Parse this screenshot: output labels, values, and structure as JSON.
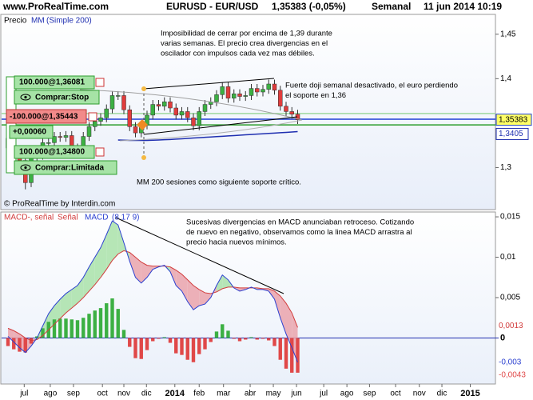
{
  "header": {
    "site": "www.ProRealTime.com",
    "instrument": "EURUSD - EUR/USD",
    "quote": "1,35383 (-0,05%)",
    "period": "Semanal",
    "datetime": "11 jun 2014 10:19"
  },
  "credit": "© ProRealTime by Interdin.com",
  "orders": [
    {
      "label": "100.000@1,36081",
      "kind": "Comprar:Stop",
      "price": 1.36081,
      "color": "#9fd89f"
    },
    {
      "label": "-100.000@1,35443",
      "delta": "+0,00060",
      "price": 1.35443,
      "color": "#1f3fd6"
    },
    {
      "label": "100.000@1,34800",
      "kind": "Comprar:Limitada",
      "price": 1.348,
      "color": "#2e9e2e"
    }
  ],
  "chart_data": [
    {
      "type": "candlestick",
      "label": "Precio",
      "xlim": [
        0,
        84
      ],
      "ylim": [
        1.2536,
        1.4714
      ],
      "yticks": [
        {
          "value": 1.45,
          "label": "1,45"
        },
        {
          "value": 1.4,
          "label": "1,4"
        },
        {
          "value": 1.3,
          "label": "1,3"
        }
      ],
      "up_color": "#3cb043",
      "down_color": "#e03c3c",
      "open": [
        1.322,
        1.333,
        1.312,
        1.308,
        1.283,
        1.313,
        1.314,
        1.328,
        1.328,
        1.335,
        1.334,
        1.336,
        1.322,
        1.321,
        1.335,
        1.346,
        1.352,
        1.356,
        1.366,
        1.381,
        1.381,
        1.365,
        1.346,
        1.339,
        1.348,
        1.359,
        1.371,
        1.369,
        1.374,
        1.367,
        1.359,
        1.363,
        1.356,
        1.347,
        1.363,
        1.371,
        1.374,
        1.382,
        1.391,
        1.378,
        1.383,
        1.38,
        1.381,
        1.389,
        1.385,
        1.388,
        1.394,
        1.387,
        1.369,
        1.363,
        1.36
      ],
      "high": [
        1.338,
        1.338,
        1.317,
        1.313,
        1.318,
        1.319,
        1.333,
        1.333,
        1.34,
        1.34,
        1.341,
        1.341,
        1.327,
        1.34,
        1.351,
        1.357,
        1.361,
        1.371,
        1.386,
        1.386,
        1.386,
        1.37,
        1.351,
        1.353,
        1.364,
        1.376,
        1.376,
        1.379,
        1.379,
        1.372,
        1.368,
        1.368,
        1.361,
        1.368,
        1.376,
        1.379,
        1.387,
        1.396,
        1.396,
        1.388,
        1.388,
        1.386,
        1.394,
        1.394,
        1.393,
        1.399,
        1.399,
        1.392,
        1.374,
        1.368,
        1.365
      ],
      "low": [
        1.317,
        1.307,
        1.303,
        1.2755,
        1.278,
        1.308,
        1.309,
        1.323,
        1.323,
        1.329,
        1.329,
        1.317,
        1.316,
        1.316,
        1.33,
        1.341,
        1.347,
        1.351,
        1.361,
        1.376,
        1.36,
        1.341,
        1.334,
        1.334,
        1.343,
        1.354,
        1.364,
        1.364,
        1.362,
        1.354,
        1.354,
        1.351,
        1.342,
        1.342,
        1.358,
        1.366,
        1.369,
        1.377,
        1.373,
        1.373,
        1.375,
        1.375,
        1.376,
        1.38,
        1.38,
        1.383,
        1.382,
        1.364,
        1.358,
        1.355,
        1.349
      ],
      "close": [
        1.333,
        1.312,
        1.308,
        1.283,
        1.313,
        1.314,
        1.328,
        1.328,
        1.335,
        1.334,
        1.336,
        1.322,
        1.321,
        1.335,
        1.346,
        1.352,
        1.356,
        1.366,
        1.381,
        1.381,
        1.365,
        1.346,
        1.339,
        1.348,
        1.359,
        1.371,
        1.369,
        1.374,
        1.367,
        1.359,
        1.363,
        1.356,
        1.347,
        1.363,
        1.371,
        1.374,
        1.382,
        1.391,
        1.378,
        1.383,
        1.38,
        1.381,
        1.389,
        1.385,
        1.388,
        1.394,
        1.387,
        1.369,
        1.363,
        1.36,
        1.35383
      ],
      "close_last_label": "1,35383",
      "series": [
        {
          "name": "MM",
          "params": "(Simple 200)",
          "color": "#1f2fb0",
          "last_label": "1,3405",
          "values": [
            null,
            null,
            null,
            null,
            null,
            null,
            null,
            null,
            null,
            null,
            null,
            null,
            null,
            null,
            null,
            null,
            null,
            null,
            null,
            1.331,
            1.3308,
            1.3306,
            1.3305,
            1.3305,
            1.3306,
            1.3308,
            1.331,
            1.3313,
            1.3316,
            1.332,
            1.3324,
            1.3328,
            1.3332,
            1.3336,
            1.334,
            1.3344,
            1.3348,
            1.3352,
            1.3356,
            1.336,
            1.3364,
            1.3368,
            1.3372,
            1.3376,
            1.338,
            1.3384,
            1.3388,
            1.3392,
            1.3396,
            1.34,
            1.3405
          ]
        }
      ],
      "annotations": [
        [
          "Imposibilidad de cerrar por encima de 1,39 durante",
          "varias semanas. El precio crea divergencias en el",
          "oscilador con impulsos cada vez mas débiles."
        ],
        [
          "Fuerte doji semanal desactivado, el euro perdiendo",
          "el soporte en 1,36"
        ],
        [
          "MM 200 sesiones como siguiente soporte crítico."
        ]
      ]
    },
    {
      "type": "macd",
      "params": "(8 17 9)",
      "xlim": [
        0,
        84
      ],
      "xticks": [
        {
          "value": 2.8,
          "label": "jul"
        },
        {
          "value": 7.3,
          "label": "ago"
        },
        {
          "value": 11.3,
          "label": "sep"
        },
        {
          "value": 16.3,
          "label": "oct"
        },
        {
          "value": 20,
          "label": "nov"
        },
        {
          "value": 23.9,
          "label": "dic"
        },
        {
          "value": 28.8,
          "label": "2014"
        },
        {
          "value": 33,
          "label": "feb"
        },
        {
          "value": 37.2,
          "label": "mar"
        },
        {
          "value": 41.8,
          "label": "abr"
        },
        {
          "value": 45.8,
          "label": "may"
        },
        {
          "value": 49.8,
          "label": "jun"
        },
        {
          "value": 54.5,
          "label": "jul"
        },
        {
          "value": 58.5,
          "label": "ago"
        },
        {
          "value": 62.4,
          "label": "sep"
        },
        {
          "value": 66.9,
          "label": "oct"
        },
        {
          "value": 71,
          "label": "nov"
        },
        {
          "value": 74.9,
          "label": "dic"
        },
        {
          "value": 79.8,
          "label": "2015"
        }
      ],
      "ylim": [
        -0.0056,
        0.0155
      ],
      "yticks": [
        {
          "value": 0.015,
          "label": "0,015"
        },
        {
          "value": 0.01,
          "label": "0,01"
        },
        {
          "value": 0.005,
          "label": "0,005"
        },
        0
      ],
      "histogram": {
        "name": "MACD-, señal",
        "up_color": "#3cb043",
        "down_color": "#e04848",
        "last_label": "-0,0043",
        "values": [
          -0.001,
          -0.0014,
          -0.0017,
          -0.0018,
          -0.0007,
          0.0002,
          0.0012,
          0.002,
          0.0023,
          0.0024,
          0.0024,
          0.0023,
          0.0022,
          0.0025,
          0.003,
          0.0034,
          0.0037,
          0.0043,
          0.0049,
          0.0036,
          0.001,
          -0.0011,
          -0.0025,
          -0.0026,
          -0.0015,
          -0.0004,
          -0.0001,
          0.0001,
          -0.0006,
          -0.0019,
          -0.0021,
          -0.0027,
          -0.003,
          -0.002,
          -0.0014,
          -0.0005,
          0.0008,
          0.0017,
          0.0009,
          -0.0001,
          -0.0004,
          -0.0002,
          0.0001,
          -0.0002,
          -0.0001,
          -0.0003,
          -0.001,
          -0.0027,
          -0.0038,
          -0.0043,
          -0.0043
        ]
      },
      "series": [
        {
          "name": "Señal",
          "color": "#d23c3c",
          "last_label": "0,0013",
          "values": [
            0.0012,
            0.0009,
            0.0005,
            0,
            -0.0003,
            -0.0002,
            0.0003,
            0.001,
            0.0017,
            0.0024,
            0.0031,
            0.0037,
            0.0043,
            0.005,
            0.0058,
            0.0066,
            0.0075,
            0.0085,
            0.0096,
            0.0104,
            0.0108,
            0.0106,
            0.01,
            0.0094,
            0.009,
            0.0089,
            0.0089,
            0.0089,
            0.0088,
            0.0084,
            0.0079,
            0.0072,
            0.0065,
            0.006,
            0.0056,
            0.0055,
            0.0057,
            0.0061,
            0.0063,
            0.0063,
            0.0062,
            0.0062,
            0.0062,
            0.0062,
            0.0061,
            0.0061,
            0.0058,
            0.0052,
            0.0043,
            0.0031,
            0.0013
          ]
        },
        {
          "name": "MACD",
          "color": "#2a3fd0",
          "last_label": "-0,003",
          "values": [
            0.0002,
            -0.0005,
            -0.0012,
            -0.0018,
            -0.001,
            0,
            0.0015,
            0.003,
            0.004,
            0.0048,
            0.0055,
            0.006,
            0.0065,
            0.0075,
            0.0088,
            0.01,
            0.0112,
            0.0128,
            0.0145,
            0.014,
            0.0118,
            0.0095,
            0.0075,
            0.0068,
            0.0075,
            0.0085,
            0.0088,
            0.009,
            0.0082,
            0.0065,
            0.0058,
            0.0045,
            0.0035,
            0.004,
            0.0042,
            0.005,
            0.0065,
            0.0078,
            0.0072,
            0.0062,
            0.0058,
            0.006,
            0.0063,
            0.006,
            0.006,
            0.0058,
            0.0048,
            0.0025,
            0.0005,
            -0.0012,
            -0.003
          ]
        }
      ],
      "annotations": [
        [
          "Sucesivas divergencias en MACD anunciaban retroceso. Cotizando",
          "de nuevo en negativo, observamos como la linea MACD arrastra al",
          "precio hacia nuevos mínimos."
        ]
      ]
    }
  ]
}
